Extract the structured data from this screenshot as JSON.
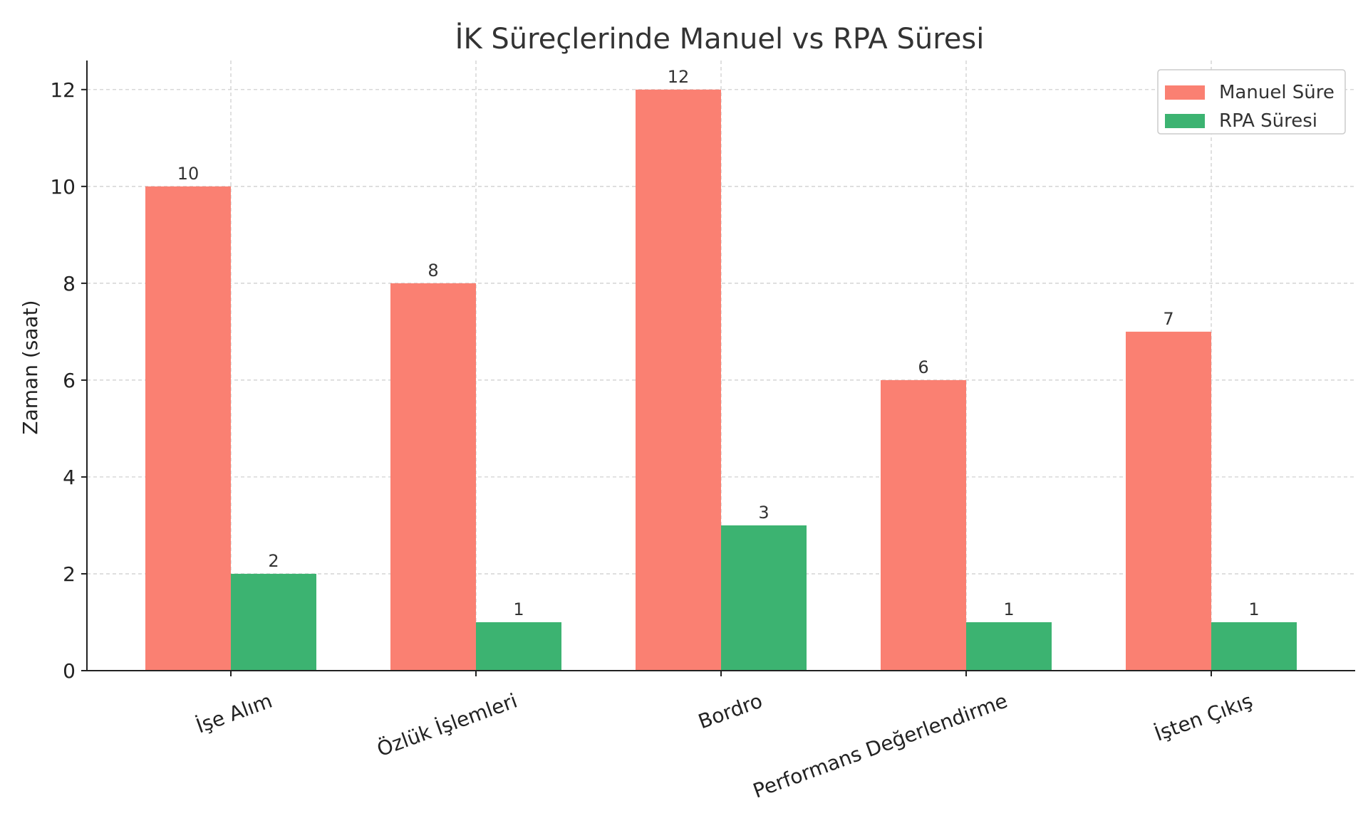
{
  "chart_data": {
    "type": "bar",
    "title": "İK Süreçlerinde Manuel vs RPA Süresi",
    "xlabel": "",
    "ylabel": "Zaman (saat)",
    "categories": [
      "İşe Alım",
      "Özlük İşlemleri",
      "Bordro",
      "Performans Değerlendirme",
      "İşten Çıkış"
    ],
    "series": [
      {
        "name": "Manuel Süre",
        "values": [
          10,
          8,
          12,
          6,
          7
        ],
        "color": "#FA8072"
      },
      {
        "name": "RPA Süresi",
        "values": [
          2,
          1,
          3,
          1,
          1
        ],
        "color": "#3CB371"
      }
    ],
    "ylim": [
      0,
      12.6
    ],
    "yticks": [
      0,
      2,
      4,
      6,
      8,
      10,
      12
    ],
    "grid": true,
    "legend_position": "top-right",
    "xtick_rotation": -20,
    "colors": {
      "grid": "#cccccc",
      "axis": "#222222",
      "text": "#333333"
    }
  }
}
